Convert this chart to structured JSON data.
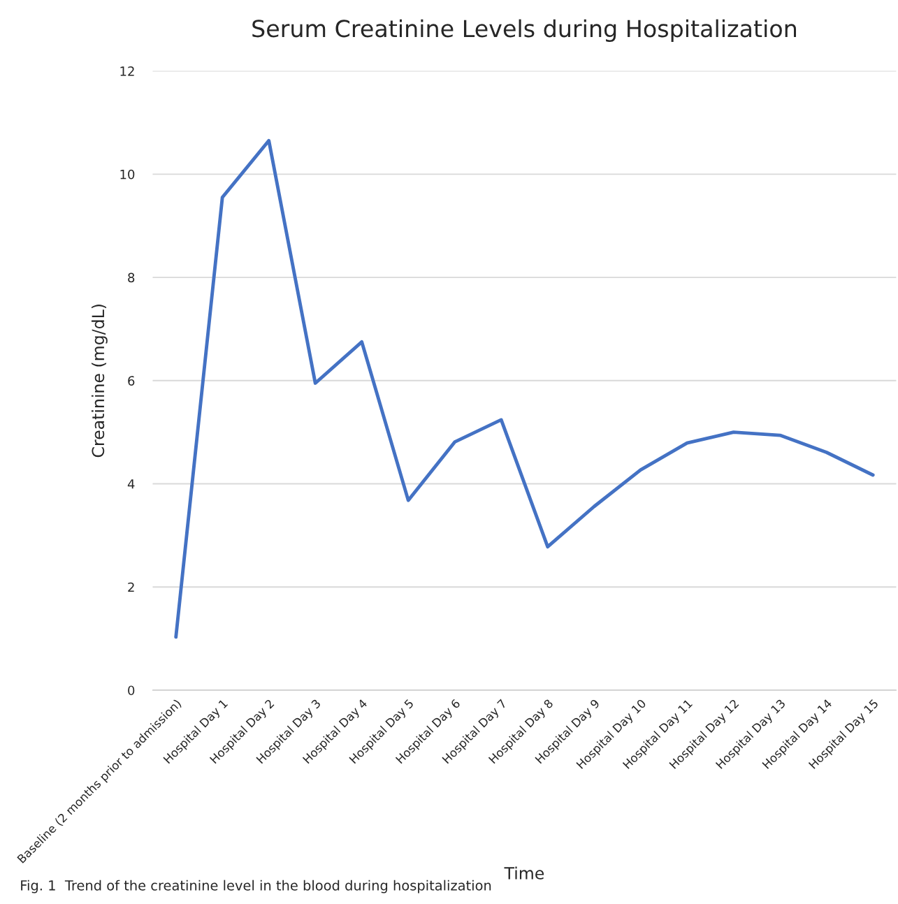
{
  "chart_data": {
    "type": "line",
    "title": "Serum Creatinine Levels during Hospitalization",
    "xlabel": "Time",
    "ylabel": "Creatinine (mg/dL)",
    "categories": [
      "Baseline (2 months prior to admission)",
      "Hospital Day 1",
      "Hospital Day 2",
      "Hospital Day 3",
      "Hospital Day 4",
      "Hospital Day 5",
      "Hospital Day 6",
      "Hospital Day 7",
      "Hospital Day 8",
      "Hospital Day 9",
      "Hospital Day 10",
      "Hospital Day 11",
      "Hospital Day 12",
      "Hospital Day 13",
      "Hospital Day 14",
      "Hospital Day 15"
    ],
    "series": [
      {
        "color": "#4472c4",
        "values": [
          1.03,
          9.55,
          10.65,
          5.95,
          6.75,
          3.68,
          4.81,
          5.24,
          2.78,
          3.56,
          4.27,
          4.79,
          5.0,
          4.94,
          4.61,
          4.17
        ]
      }
    ],
    "ylim": [
      0,
      12
    ],
    "yticks": [
      0,
      2,
      4,
      6,
      8,
      10,
      12
    ],
    "grid": "y",
    "legend": false,
    "marker": "none",
    "line_style": "solid",
    "annotations": [
      "Fig. 1  Trend of the creatinine level in the blood during hospitalization"
    ]
  }
}
